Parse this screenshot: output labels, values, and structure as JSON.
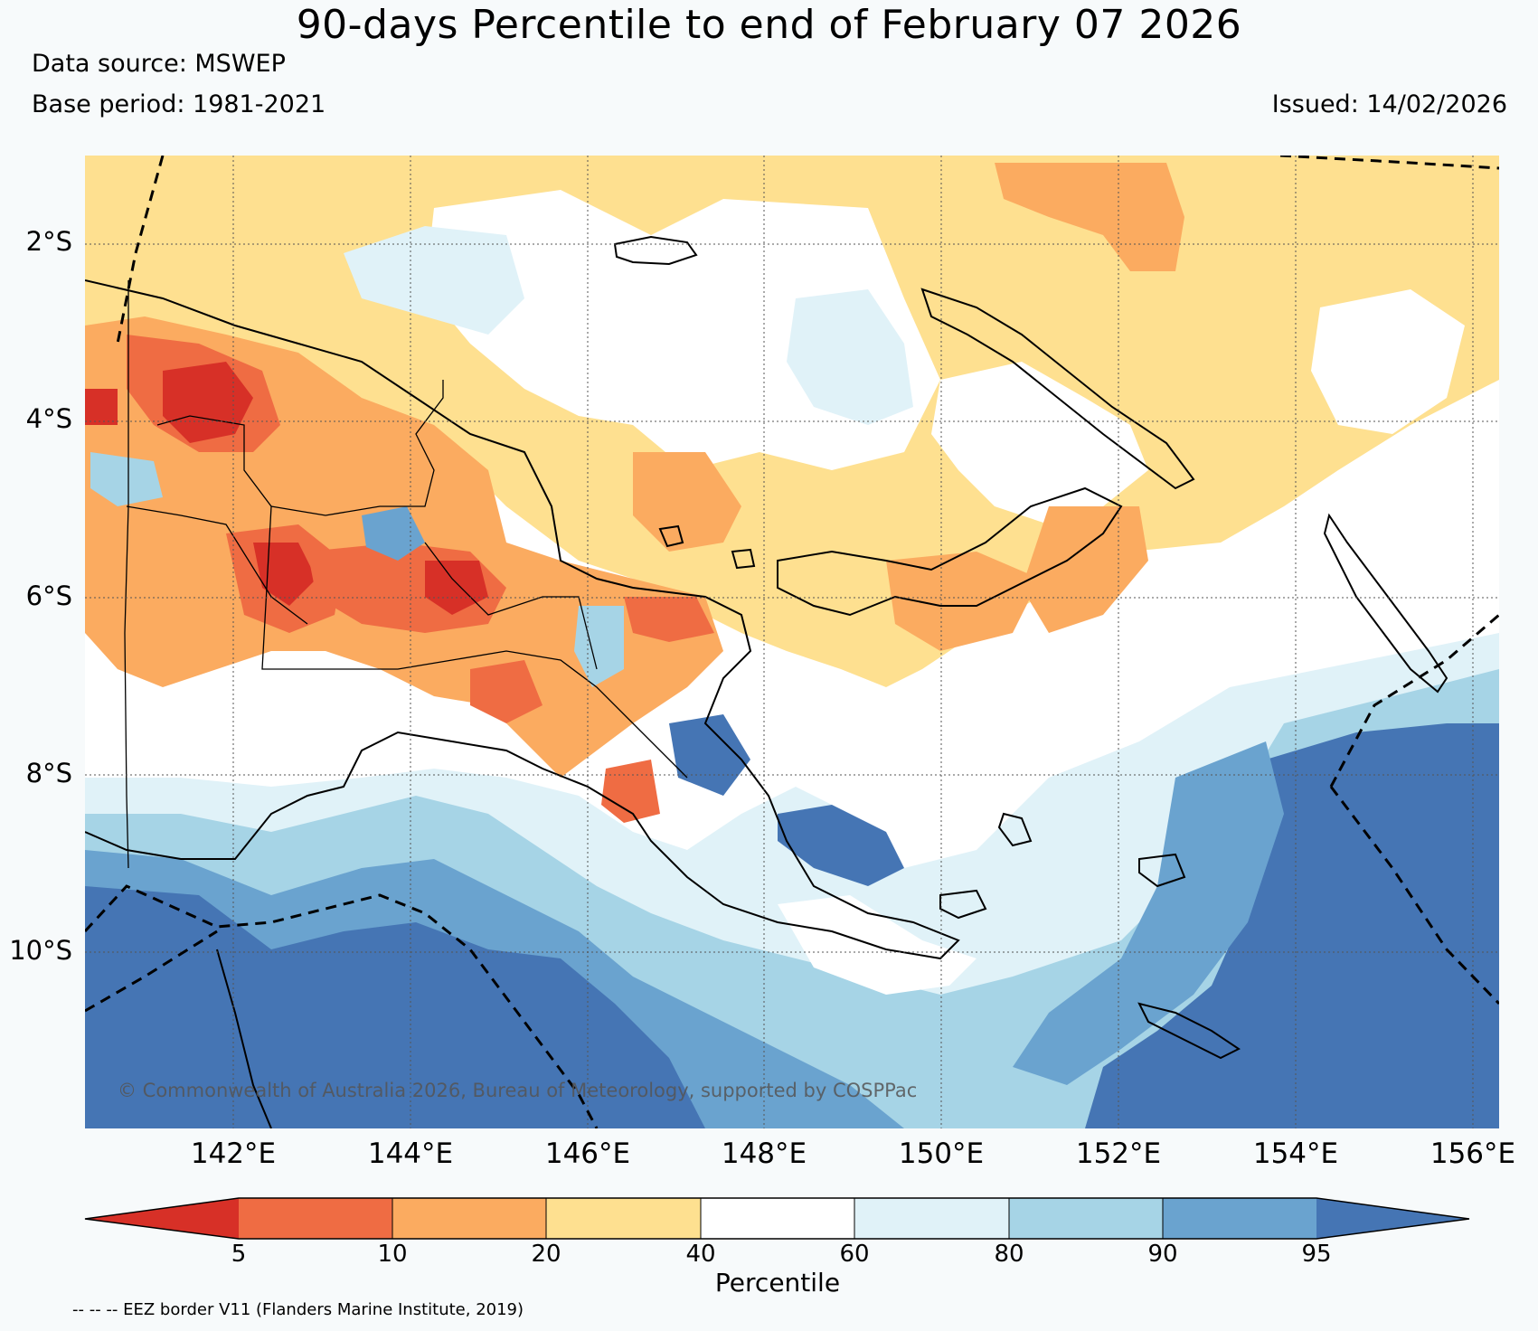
{
  "header": {
    "title": "90-days Percentile to end of February 07 2026",
    "data_source": "Data source: MSWEP",
    "base_period": "Base period: 1981-2021",
    "issued": "Issued: 14/02/2026"
  },
  "map": {
    "lat_labels": [
      "2°S",
      "4°S",
      "6°S",
      "8°S",
      "10°S"
    ],
    "lon_labels": [
      "142°E",
      "144°E",
      "146°E",
      "148°E",
      "150°E",
      "152°E",
      "154°E",
      "156°E"
    ],
    "credit": "© Commonwealth of Australia 2026, Bureau of Meteorology, supported by COSPPac",
    "extent": {
      "lon_min": 140.4,
      "lon_max": 156.4,
      "lat_min": -12.0,
      "lat_max": -1.0
    }
  },
  "colorbar": {
    "title": "Percentile",
    "ticks": [
      "5",
      "10",
      "20",
      "40",
      "60",
      "80",
      "90",
      "95"
    ],
    "colors": {
      "below_5": "#d73027",
      "5_10": "#ef6c43",
      "10_20": "#fbab60",
      "20_40": "#fee090",
      "40_60": "#ffffff",
      "60_80": "#e0f2f8",
      "80_90": "#a6d4e6",
      "90_95": "#6aa3cf",
      "above_95": "#4575b4"
    }
  },
  "footnote": "-- -- -- EEZ border V11 (Flanders Marine Institute, 2019)"
}
